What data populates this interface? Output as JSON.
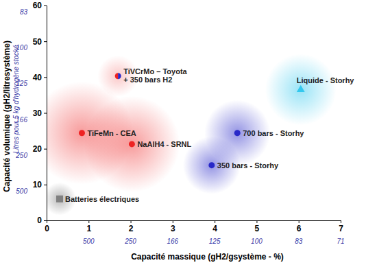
{
  "chart_data": {
    "type": "scatter",
    "x_label": "Capacité massique (gH2/gsystème - %)",
    "y_label": "Capacité volumique (gH2/litresystème)",
    "xlim": [
      0,
      7
    ],
    "xticks": [
      0,
      1,
      2,
      3,
      4,
      5,
      6,
      7
    ],
    "ylim": [
      0,
      60
    ],
    "yticks": [
      0,
      10,
      20,
      30,
      40,
      50,
      60
    ],
    "grid": false,
    "x_secondary": {
      "ticks": [
        {
          "value": 1,
          "label": "500"
        },
        {
          "value": 2,
          "label": "250"
        },
        {
          "value": 3,
          "label": "166"
        },
        {
          "value": 4,
          "label": "125"
        },
        {
          "value": 5,
          "label": "100"
        },
        {
          "value": 6,
          "label": "83"
        },
        {
          "value": 7,
          "label": "71"
        }
      ]
    },
    "y_secondary": {
      "title": "Litres pour 5 kg d'hydrogène stocké",
      "ticks": [
        {
          "value": 10,
          "label": "500"
        },
        {
          "value": 20,
          "label": "250"
        },
        {
          "value": 30,
          "label": "166"
        },
        {
          "value": 40,
          "label": "125"
        },
        {
          "value": 50,
          "label": "100"
        },
        {
          "value": 60,
          "label": "83"
        }
      ]
    },
    "series": [
      {
        "name": "TiVCrMo – Toyota\n+ 350 bars H2",
        "colors": [
          "#ee2222",
          "#2828c8"
        ],
        "marker": "half-circle",
        "x": [
          1.7
        ],
        "values": [
          40.3
        ]
      },
      {
        "name": "TiFeMn - CEA",
        "color": "#ee2222",
        "marker": "circle",
        "x": [
          0.84
        ],
        "values": [
          24.4
        ]
      },
      {
        "name": "NaAlH4 - SRNL",
        "color": "#ee2222",
        "marker": "circle",
        "x": [
          2.03
        ],
        "values": [
          21.3
        ]
      },
      {
        "name": "350 bars - Storhy",
        "color": "#2828c8",
        "marker": "circle",
        "x": [
          3.93
        ],
        "values": [
          15.4
        ]
      },
      {
        "name": "700 bars - Storhy",
        "color": "#2828c8",
        "marker": "circle",
        "x": [
          4.54
        ],
        "values": [
          24.4
        ]
      },
      {
        "name": "Liquide - Storhy",
        "color": "#33c8ee",
        "marker": "triangle",
        "x": [
          6.05
        ],
        "values": [
          36.5
        ]
      },
      {
        "name": "Batteries électriques",
        "color": "#808080",
        "marker": "square",
        "x": [
          0.31
        ],
        "values": [
          6.0
        ]
      }
    ]
  }
}
